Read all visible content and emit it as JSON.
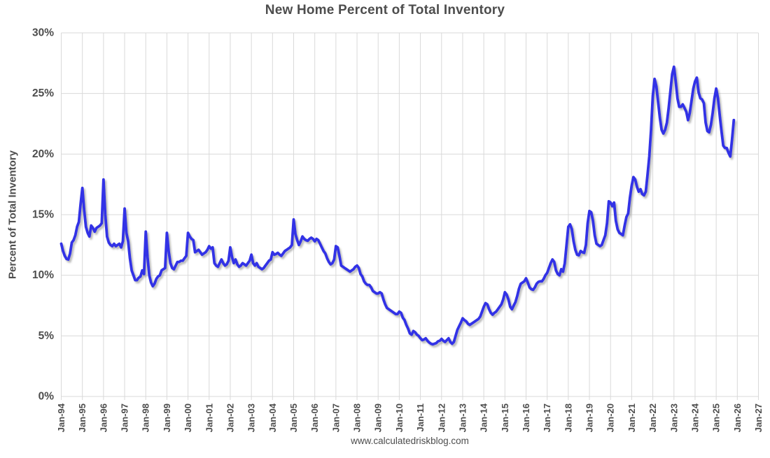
{
  "chart_data": {
    "type": "line",
    "title": "New Home Percent of Total Inventory",
    "ylabel": "Percent of Total Inventory",
    "xlabel": "",
    "attribution": "www.calculatedriskblog.com",
    "ylim": [
      0,
      30
    ],
    "grid": true,
    "legend": false,
    "frequency": "monthly",
    "start_month": "Jan-94",
    "y_tick_labels": [
      "0%",
      "5%",
      "10%",
      "15%",
      "20%",
      "25%",
      "30%"
    ],
    "y_tick_values": [
      0,
      5,
      10,
      15,
      20,
      25,
      30
    ],
    "x_tick_labels": [
      "Jan-94",
      "Jan-95",
      "Jan-96",
      "Jan-97",
      "Jan-98",
      "Jan-99",
      "Jan-00",
      "Jan-01",
      "Jan-02",
      "Jan-03",
      "Jan-04",
      "Jan-05",
      "Jan-06",
      "Jan-07",
      "Jan-08",
      "Jan-09",
      "Jan-10",
      "Jan-11",
      "Jan-12",
      "Jan-13",
      "Jan-14",
      "Jan-15",
      "Jan-16",
      "Jan-17",
      "Jan-18",
      "Jan-19",
      "Jan-20",
      "Jan-21",
      "Jan-22",
      "Jan-23",
      "Jan-24",
      "Jan-25",
      "Jan-26",
      "Jan-27"
    ],
    "colors": {
      "line": "#3232e6",
      "grid": "#d9d9d9",
      "text": "#4d4d4d",
      "background": "#ffffff",
      "shadow": "#888888"
    },
    "series": [
      {
        "name": "New Home Percent of Total Inventory",
        "values": [
          12.6,
          12.0,
          11.6,
          11.35,
          11.3,
          11.8,
          12.7,
          12.9,
          13.3,
          14.0,
          14.4,
          15.9,
          17.2,
          15.4,
          14.0,
          13.5,
          13.2,
          14.1,
          13.9,
          13.6,
          13.9,
          14.0,
          14.1,
          14.3,
          17.9,
          15.0,
          13.2,
          12.7,
          12.5,
          12.4,
          12.6,
          12.4,
          12.5,
          12.6,
          12.3,
          12.8,
          15.5,
          13.5,
          12.8,
          11.4,
          10.4,
          10.0,
          9.6,
          9.6,
          9.8,
          9.9,
          10.4,
          10.1,
          13.6,
          11.5,
          10.0,
          9.4,
          9.1,
          9.3,
          9.7,
          9.9,
          10.0,
          10.4,
          10.5,
          10.6,
          13.5,
          12.0,
          11.0,
          10.6,
          10.5,
          10.8,
          11.1,
          11.1,
          11.2,
          11.2,
          11.4,
          11.6,
          13.5,
          13.2,
          13.0,
          12.9,
          11.9,
          12.0,
          12.1,
          11.9,
          11.7,
          11.8,
          11.9,
          12.1,
          12.4,
          12.2,
          12.3,
          11.0,
          10.8,
          10.7,
          11.0,
          11.3,
          11.0,
          10.8,
          10.9,
          11.2,
          12.3,
          11.5,
          11.0,
          11.3,
          10.9,
          10.7,
          10.8,
          11.0,
          10.9,
          10.8,
          11.0,
          11.2,
          11.7,
          11.0,
          10.8,
          11.0,
          10.7,
          10.6,
          10.5,
          10.6,
          10.8,
          11.0,
          11.2,
          11.3,
          11.9,
          11.7,
          11.75,
          11.85,
          11.7,
          11.6,
          11.8,
          12.0,
          12.1,
          12.2,
          12.3,
          12.5,
          14.6,
          13.4,
          12.9,
          12.5,
          12.8,
          13.2,
          13.0,
          12.9,
          12.85,
          13.0,
          13.1,
          13.0,
          12.8,
          13.0,
          12.9,
          12.6,
          12.3,
          12.0,
          11.8,
          11.4,
          11.1,
          10.9,
          11.0,
          11.3,
          12.4,
          12.3,
          11.6,
          10.8,
          10.7,
          10.6,
          10.5,
          10.4,
          10.3,
          10.4,
          10.5,
          10.7,
          10.8,
          10.6,
          10.1,
          9.9,
          9.5,
          9.3,
          9.2,
          9.2,
          9.0,
          8.7,
          8.6,
          8.5,
          8.5,
          8.6,
          8.5,
          8.0,
          7.6,
          7.3,
          7.2,
          7.1,
          7.0,
          6.9,
          6.8,
          6.8,
          7.0,
          6.9,
          6.5,
          6.3,
          5.9,
          5.6,
          5.2,
          5.1,
          5.4,
          5.3,
          5.1,
          5.0,
          4.8,
          4.65,
          4.7,
          4.8,
          4.6,
          4.45,
          4.35,
          4.3,
          4.35,
          4.4,
          4.55,
          4.6,
          4.75,
          4.6,
          4.5,
          4.65,
          4.8,
          4.5,
          4.35,
          4.5,
          5.0,
          5.5,
          5.8,
          6.1,
          6.45,
          6.3,
          6.2,
          6.0,
          5.9,
          6.0,
          6.1,
          6.2,
          6.3,
          6.4,
          6.6,
          7.0,
          7.4,
          7.7,
          7.6,
          7.2,
          6.9,
          6.75,
          6.9,
          7.0,
          7.2,
          7.4,
          7.6,
          8.0,
          8.6,
          8.4,
          8.0,
          7.4,
          7.2,
          7.5,
          7.8,
          8.3,
          8.9,
          9.3,
          9.4,
          9.5,
          9.75,
          9.4,
          9.0,
          8.85,
          8.8,
          9.0,
          9.3,
          9.45,
          9.5,
          9.5,
          9.7,
          10.0,
          10.2,
          10.6,
          11.0,
          11.3,
          11.1,
          10.4,
          10.1,
          10.0,
          10.5,
          10.3,
          11.0,
          12.5,
          14.0,
          14.2,
          13.8,
          12.8,
          12.1,
          11.7,
          11.65,
          12.0,
          11.9,
          11.85,
          12.5,
          14.3,
          15.3,
          15.2,
          14.5,
          13.3,
          12.6,
          12.5,
          12.4,
          12.5,
          12.9,
          13.3,
          14.3,
          16.1,
          16.0,
          15.7,
          16.0,
          14.5,
          13.8,
          13.5,
          13.4,
          13.3,
          14.1,
          14.8,
          15.1,
          16.4,
          17.4,
          18.1,
          17.9,
          17.3,
          16.9,
          17.1,
          16.7,
          16.6,
          16.9,
          18.3,
          19.8,
          22.0,
          24.8,
          26.2,
          25.6,
          24.3,
          23.0,
          22.0,
          21.7,
          22.0,
          22.6,
          23.8,
          25.2,
          26.6,
          27.2,
          26.0,
          24.6,
          23.9,
          23.9,
          24.1,
          23.8,
          23.5,
          22.8,
          23.4,
          24.4,
          25.4,
          26.0,
          26.3,
          25.1,
          24.6,
          24.5,
          24.2,
          22.6,
          21.9,
          21.8,
          22.4,
          23.4,
          24.6,
          25.4,
          24.6,
          23.2,
          21.9,
          20.7,
          20.5,
          20.5,
          20.1,
          19.8,
          21.2,
          22.8
        ]
      }
    ]
  }
}
